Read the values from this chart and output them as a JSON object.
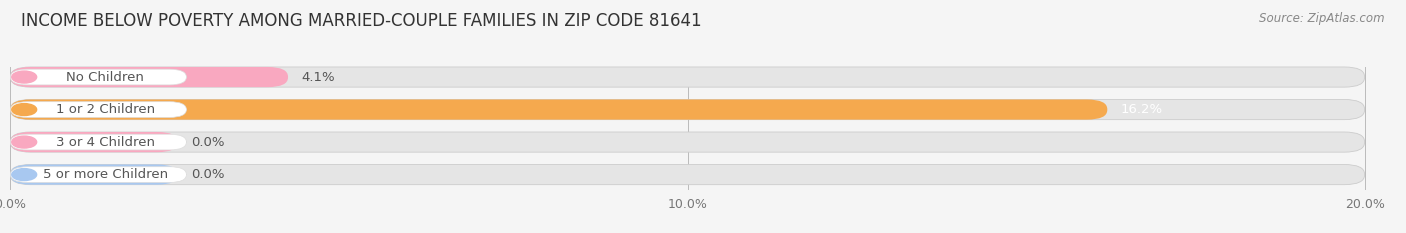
{
  "title": "INCOME BELOW POVERTY AMONG MARRIED-COUPLE FAMILIES IN ZIP CODE 81641",
  "source": "Source: ZipAtlas.com",
  "categories": [
    "No Children",
    "1 or 2 Children",
    "3 or 4 Children",
    "5 or more Children"
  ],
  "values": [
    4.1,
    16.2,
    0.0,
    0.0
  ],
  "bar_colors": [
    "#f9a8c0",
    "#f5a94e",
    "#f9a8c0",
    "#a8c8f0"
  ],
  "label_dot_colors": [
    "#f9a8c0",
    "#f5a94e",
    "#f9a8c0",
    "#a8c8f0"
  ],
  "value_label_16": "16.2%",
  "value_colors": [
    "#555555",
    "#ffffff",
    "#555555",
    "#555555"
  ],
  "xlim": [
    0,
    20.0
  ],
  "xticks": [
    0.0,
    10.0,
    20.0
  ],
  "xticklabels": [
    "0.0%",
    "10.0%",
    "20.0%"
  ],
  "bg_color": "#f5f5f5",
  "bar_bg_color": "#e5e5e5",
  "title_fontsize": 12,
  "label_fontsize": 9.5,
  "value_fontsize": 9.5,
  "stub_values": [
    0.6,
    0.6
  ]
}
